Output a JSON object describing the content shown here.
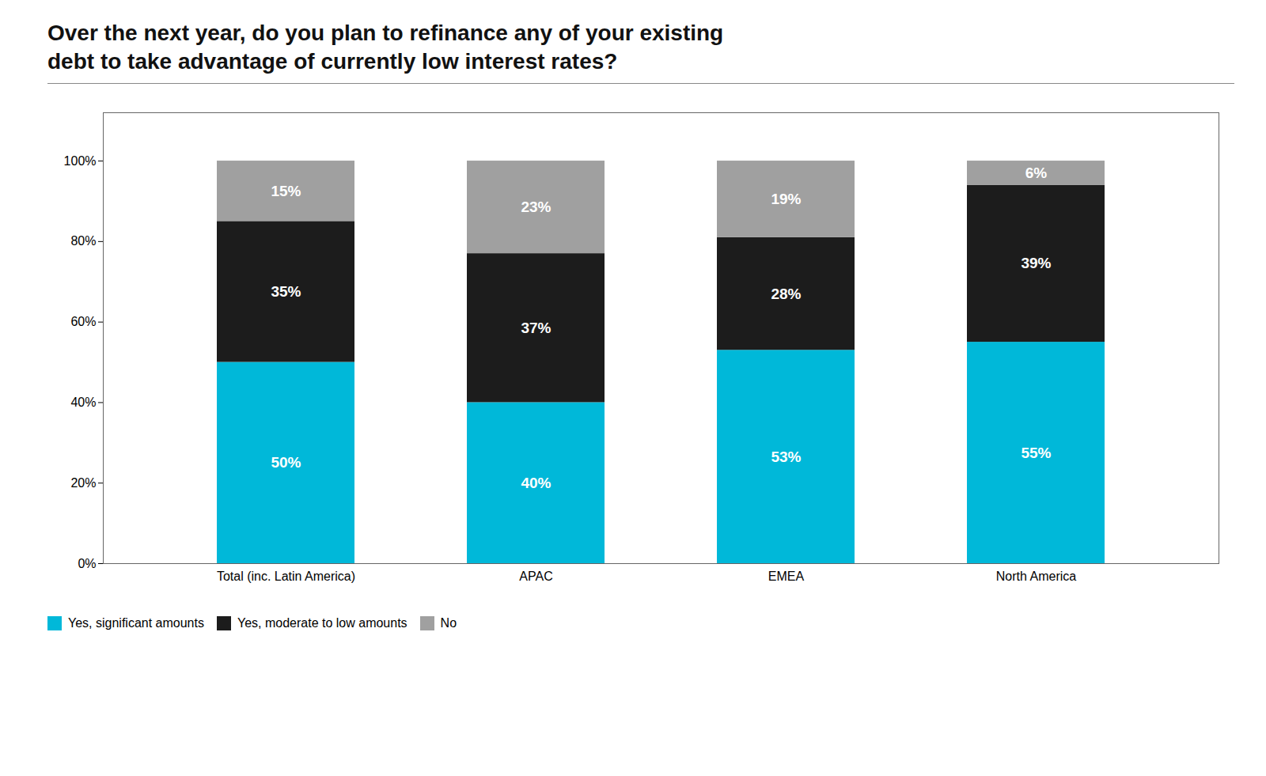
{
  "chart_data": {
    "type": "bar",
    "stacked": true,
    "title": "Over the next year, do you plan to refinance any of your existing\ndebt to take advantage of currently low interest rates?",
    "categories": [
      "Total (inc. Latin America)",
      "APAC",
      "EMEA",
      "North America"
    ],
    "series": [
      {
        "name": "Yes, significant amounts",
        "color": "#00b8d9",
        "values": [
          50,
          40,
          53,
          55
        ],
        "value_labels": [
          "50%",
          "40%",
          "53%",
          "55%"
        ]
      },
      {
        "name": "Yes, moderate to low amounts",
        "color": "#1c1c1c",
        "values": [
          35,
          37,
          28,
          39
        ],
        "value_labels": [
          "35%",
          "37%",
          "28%",
          "39%"
        ]
      },
      {
        "name": "No",
        "color": "#a0a0a0",
        "values": [
          15,
          23,
          19,
          6
        ],
        "value_labels": [
          "15%",
          "23%",
          "19%",
          "6%"
        ]
      }
    ],
    "ylim": [
      0,
      112
    ],
    "yticks": [
      {
        "value": 0,
        "label": "0%"
      },
      {
        "value": 20,
        "label": "20%"
      },
      {
        "value": 40,
        "label": "40%"
      },
      {
        "value": 60,
        "label": "60%"
      },
      {
        "value": 80,
        "label": "80%"
      },
      {
        "value": 100,
        "label": "100%"
      }
    ],
    "grid": false,
    "data_labels": true,
    "legend": "bottom"
  }
}
